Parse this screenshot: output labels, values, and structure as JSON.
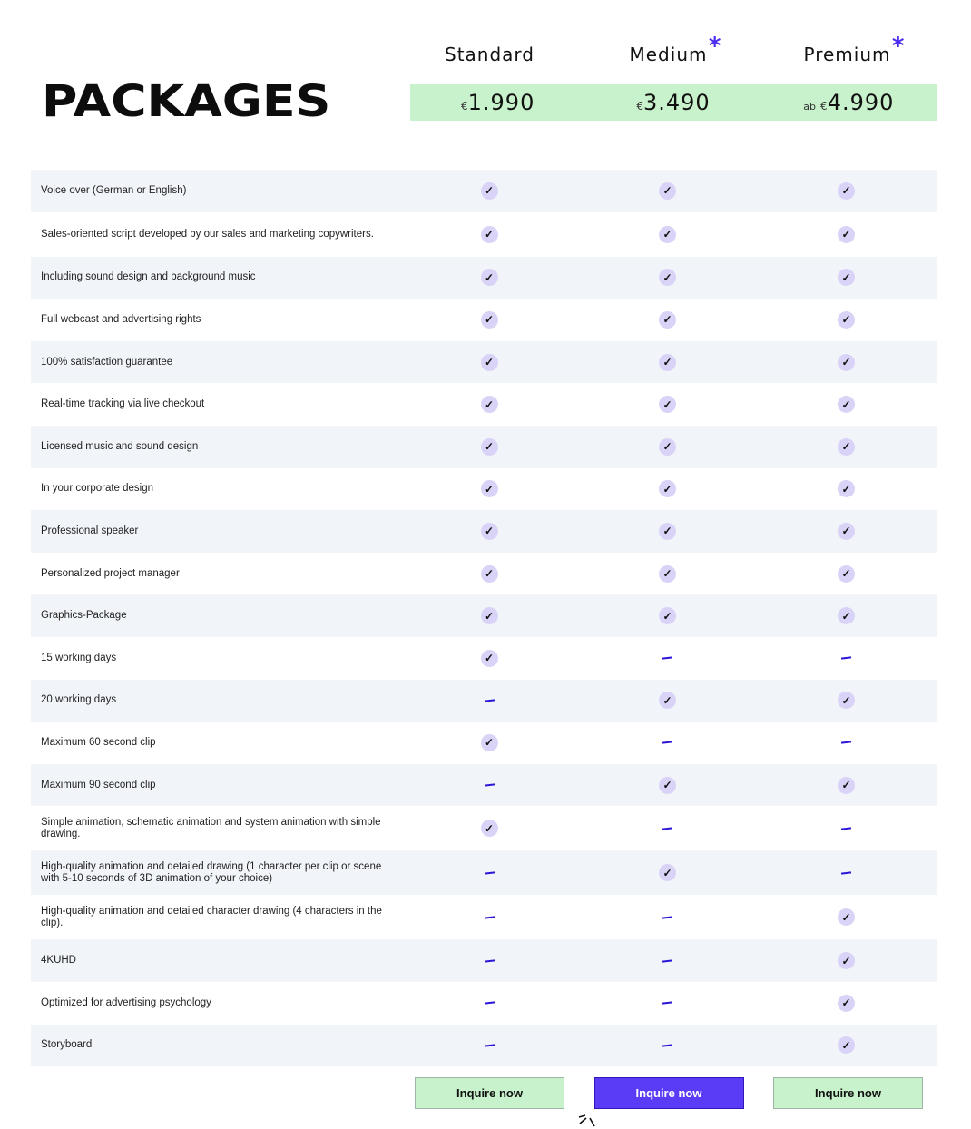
{
  "title": "PACKAGES",
  "plans": [
    {
      "name": "Standard",
      "highlight": false,
      "price_prefix": "",
      "currency": "€",
      "price": "1.990",
      "cta": "Inquire now",
      "asterisk": ""
    },
    {
      "name": "Medium",
      "highlight": true,
      "price_prefix": "",
      "currency": "€",
      "price": "3.490",
      "cta": "Inquire now",
      "asterisk": "*"
    },
    {
      "name": "Premium",
      "highlight": false,
      "price_prefix": "ab",
      "currency": "€",
      "price": "4.990",
      "cta": "Inquire now",
      "asterisk": "*"
    }
  ],
  "symbols": {
    "check": "✓",
    "dash": "—"
  },
  "colors": {
    "accent": "#5b3cf6",
    "price_bg": "#c8f2cb",
    "check_bg": "#d9d3f7",
    "row_alt": "#f1f4f9",
    "dash": "#2a16d6"
  },
  "features": [
    {
      "label": "Voice over (German or English)",
      "values": [
        true,
        true,
        true
      ]
    },
    {
      "label": "Sales-oriented script developed by our sales and marketing copywriters.",
      "values": [
        true,
        true,
        true
      ]
    },
    {
      "label": "Including sound design and background music",
      "values": [
        true,
        true,
        true
      ]
    },
    {
      "label": "Full webcast and advertising rights",
      "values": [
        true,
        true,
        true
      ]
    },
    {
      "label": "100% satisfaction guarantee",
      "values": [
        true,
        true,
        true
      ]
    },
    {
      "label": "Real-time tracking via live checkout",
      "values": [
        true,
        true,
        true
      ]
    },
    {
      "label": "Licensed music and sound design",
      "values": [
        true,
        true,
        true
      ]
    },
    {
      "label": "In your corporate design",
      "values": [
        true,
        true,
        true
      ]
    },
    {
      "label": "Professional speaker",
      "values": [
        true,
        true,
        true
      ]
    },
    {
      "label": "Personalized project manager",
      "values": [
        true,
        true,
        true
      ]
    },
    {
      "label": "Graphics-Package",
      "values": [
        true,
        true,
        true
      ]
    },
    {
      "label": "15 working days",
      "values": [
        true,
        false,
        false
      ]
    },
    {
      "label": "20 working days",
      "values": [
        false,
        true,
        true
      ]
    },
    {
      "label": "Maximum 60 second clip",
      "values": [
        true,
        false,
        false
      ]
    },
    {
      "label": "Maximum 90 second clip",
      "values": [
        false,
        true,
        true
      ]
    },
    {
      "label": "Simple animation, schematic animation and system animation with simple drawing.",
      "values": [
        true,
        false,
        false
      ]
    },
    {
      "label": "High-quality animation and detailed drawing (1 character per clip or scene with 5-10 seconds of 3D animation of your choice)",
      "values": [
        false,
        true,
        false
      ]
    },
    {
      "label": "High-quality animation and detailed character drawing (4 characters in the clip).",
      "values": [
        false,
        false,
        true
      ]
    },
    {
      "label": "4KUHD",
      "values": [
        false,
        false,
        true
      ]
    },
    {
      "label": "Optimized for advertising psychology",
      "values": [
        false,
        false,
        true
      ]
    },
    {
      "label": "Storyboard",
      "values": [
        false,
        false,
        true
      ]
    }
  ]
}
